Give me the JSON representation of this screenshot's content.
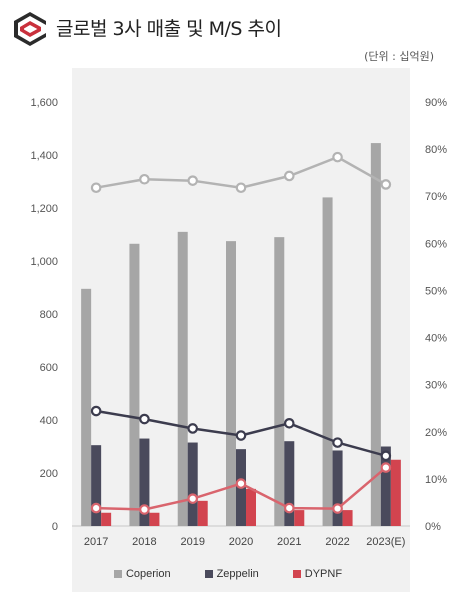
{
  "header": {
    "title": "글로벌 3사 매출 및 M/S 추이",
    "unit": "(단위 : 십억원)"
  },
  "colors": {
    "coperion": "#a6a6a6",
    "zeppelin": "#4a4a5c",
    "dypnf": "#d2444f",
    "ms_line_coperion": "#b3b3b3",
    "ms_line_zeppelin": "#3c3c4e",
    "ms_line_dypnf": "#d9646d",
    "logo_dark": "#2b2b2b",
    "logo_red": "#c9303c"
  },
  "chart_data": {
    "type": "bar",
    "categories": [
      "2017",
      "2018",
      "2019",
      "2020",
      "2021",
      "2022",
      "2023(E)"
    ],
    "series": [
      {
        "name": "Coperion",
        "kind": "bar",
        "axis": "left",
        "values": [
          895,
          1065,
          1110,
          1075,
          1090,
          1240,
          1445
        ]
      },
      {
        "name": "Zeppelin",
        "kind": "bar",
        "axis": "left",
        "values": [
          305,
          330,
          315,
          290,
          320,
          285,
          300
        ]
      },
      {
        "name": "DYPNF",
        "kind": "bar",
        "axis": "left",
        "values": [
          50,
          50,
          95,
          140,
          60,
          60,
          250
        ]
      },
      {
        "name": "Coperion",
        "kind": "line",
        "axis": "right",
        "values": [
          71.8,
          73.6,
          73.3,
          71.8,
          74.3,
          78.3,
          72.5
        ]
      },
      {
        "name": "Zeppelin",
        "kind": "line",
        "axis": "right",
        "values": [
          24.4,
          22.7,
          20.7,
          19.2,
          21.8,
          17.7,
          14.9
        ]
      },
      {
        "name": "DYPNF",
        "kind": "line",
        "axis": "right",
        "values": [
          3.8,
          3.5,
          5.8,
          9.0,
          3.8,
          3.7,
          12.4
        ]
      }
    ],
    "y_left": {
      "min": 0,
      "max": 1600,
      "ticks": [
        "0",
        "200",
        "400",
        "600",
        "800",
        "1,000",
        "1,200",
        "1,400",
        "1,600"
      ]
    },
    "y_right": {
      "min": 0,
      "max": 90,
      "ticks": [
        "0%",
        "10%",
        "20%",
        "30%",
        "40%",
        "50%",
        "60%",
        "70%",
        "80%",
        "90%"
      ]
    },
    "legend": [
      "Coperion",
      "Zeppelin",
      "DYPNF"
    ],
    "legend_position": "bottom",
    "grid": false
  }
}
